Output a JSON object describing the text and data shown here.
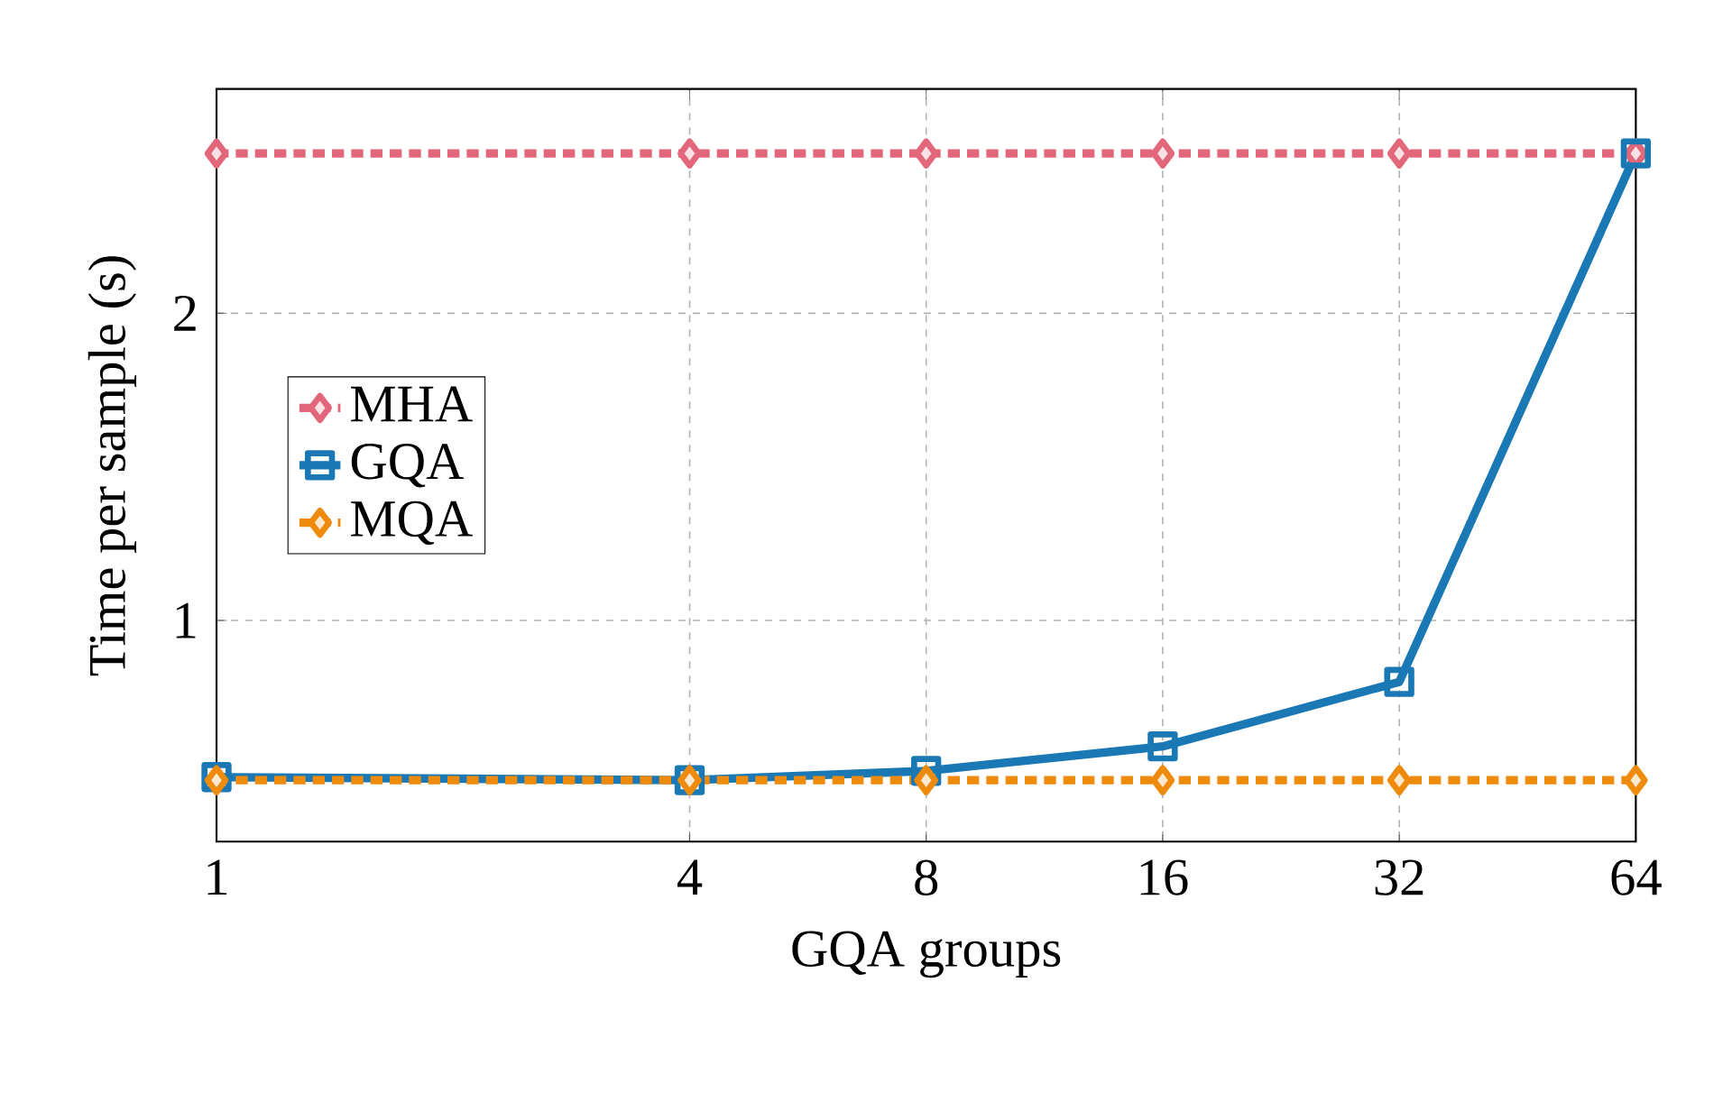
{
  "chart_data": {
    "type": "line",
    "xlabel": "GQA groups",
    "ylabel": "Time per sample (s)",
    "x": [
      1,
      4,
      8,
      16,
      32,
      64
    ],
    "series": [
      {
        "name": "MHA",
        "color": "#e3677a",
        "values": [
          2.52,
          2.52,
          2.52,
          2.52,
          2.52,
          2.52
        ],
        "line_style": "dotted",
        "marker": "diamond"
      },
      {
        "name": "GQA",
        "color": "#1a78b4",
        "values": [
          0.49,
          0.48,
          0.51,
          0.59,
          0.8,
          2.52
        ],
        "line_style": "solid",
        "marker": "square"
      },
      {
        "name": "MQA",
        "color": "#ee8a0c",
        "values": [
          0.48,
          0.48,
          0.48,
          0.48,
          0.48,
          0.48
        ],
        "line_style": "dotted",
        "marker": "diamond"
      }
    ],
    "log": "x",
    "xlim": [
      1,
      64
    ],
    "ylim": [
      0.28,
      2.73
    ],
    "xticks": [
      1,
      4,
      8,
      16,
      32,
      64
    ],
    "yticks": [
      1,
      2
    ],
    "grid": true,
    "legend": "left"
  }
}
